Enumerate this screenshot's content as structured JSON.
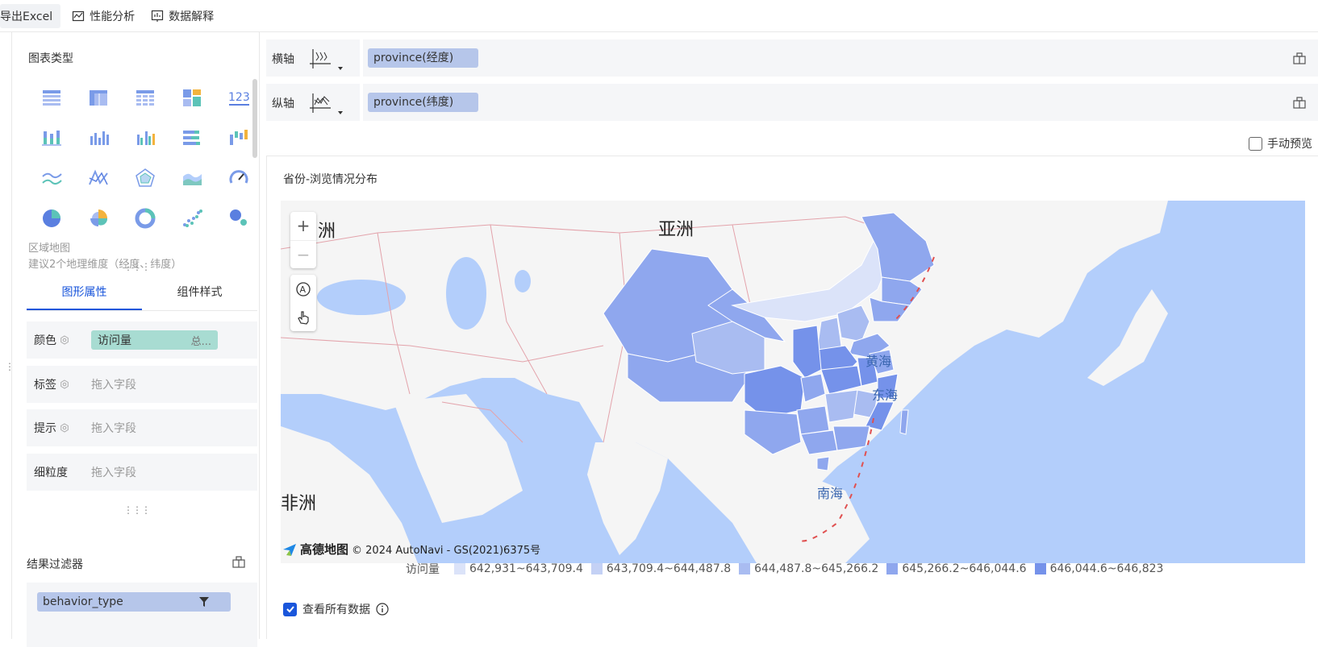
{
  "toolbar": {
    "export_excel": "导出Excel",
    "perf_analysis": "性能分析",
    "data_explain": "数据解释"
  },
  "left_panel": {
    "chart_types_title": "图表类型",
    "chart_type_name": "区域地图",
    "chart_type_hint": "建议2个地理维度（经度、纬度）",
    "chart_type_icons": [
      "table-icon",
      "crosstab-icon",
      "detail-table-icon",
      "treemap-icon",
      "kpi-number-icon",
      "stacked-bar-icon",
      "column-icon",
      "column-multi-icon",
      "bar-horizontal-icon",
      "waterfall-icon",
      "line-icon",
      "combo-line-icon",
      "radar-icon",
      "area-icon",
      "gauge-icon",
      "pie-icon",
      "rose-icon",
      "donut-icon",
      "scatter-icon",
      "bubble-icon"
    ],
    "tabs": {
      "graphic_props": "图形属性",
      "component_style": "组件样式"
    },
    "props": {
      "color_label": "颜色",
      "color_field": "访问量",
      "color_agg": "总...",
      "label_label": "标签",
      "label_placeholder": "拖入字段",
      "tooltip_label": "提示",
      "tooltip_placeholder": "拖入字段",
      "granularity_label": "细粒度",
      "granularity_placeholder": "拖入字段"
    },
    "filter": {
      "title": "结果过滤器",
      "field": "behavior_type"
    }
  },
  "axes": {
    "x_label": "横轴",
    "x_field": "province(经度)",
    "y_label": "纵轴",
    "y_field": "province(纬度)"
  },
  "manual_preview": "手动预览",
  "chart": {
    "title": "省份-浏览情况分布",
    "map_labels": {
      "asia": "亚洲",
      "europe_partial": "洲",
      "africa_partial": "非洲",
      "yellow_sea": "黄海",
      "east_sea": "东海",
      "south_sea": "南海"
    },
    "zoom_in": "+",
    "zoom_out": "−",
    "attribution_brand": "高德地图",
    "attribution_text": "© 2024 AutoNavi - GS(2021)6375号",
    "legend_title": "访问量",
    "colors": {
      "water": "#b3cefb",
      "land": "#f5f5f5",
      "border": "#e3a3ab",
      "bin1": "#dbe3f9",
      "bin2": "#c4d1f5",
      "bin3": "#a9bcf1",
      "bin4": "#8fa7ee",
      "bin5": "#7592ea"
    }
  },
  "chart_data": {
    "type": "choropleth",
    "title": "省份-浏览情况分布",
    "legend": {
      "title": "访问量",
      "placement": "bottom",
      "bins": [
        {
          "label": "642,931~643,709.4",
          "color": "#dbe3f9"
        },
        {
          "label": "643,709.4~644,487.8",
          "color": "#c4d1f5"
        },
        {
          "label": "644,487.8~645,266.2",
          "color": "#a9bcf1"
        },
        {
          "label": "645,266.2~646,044.6",
          "color": "#8fa7ee"
        },
        {
          "label": "646,044.6~646,823",
          "color": "#7592ea"
        }
      ]
    }
  },
  "view_all_data": "查看所有数据"
}
